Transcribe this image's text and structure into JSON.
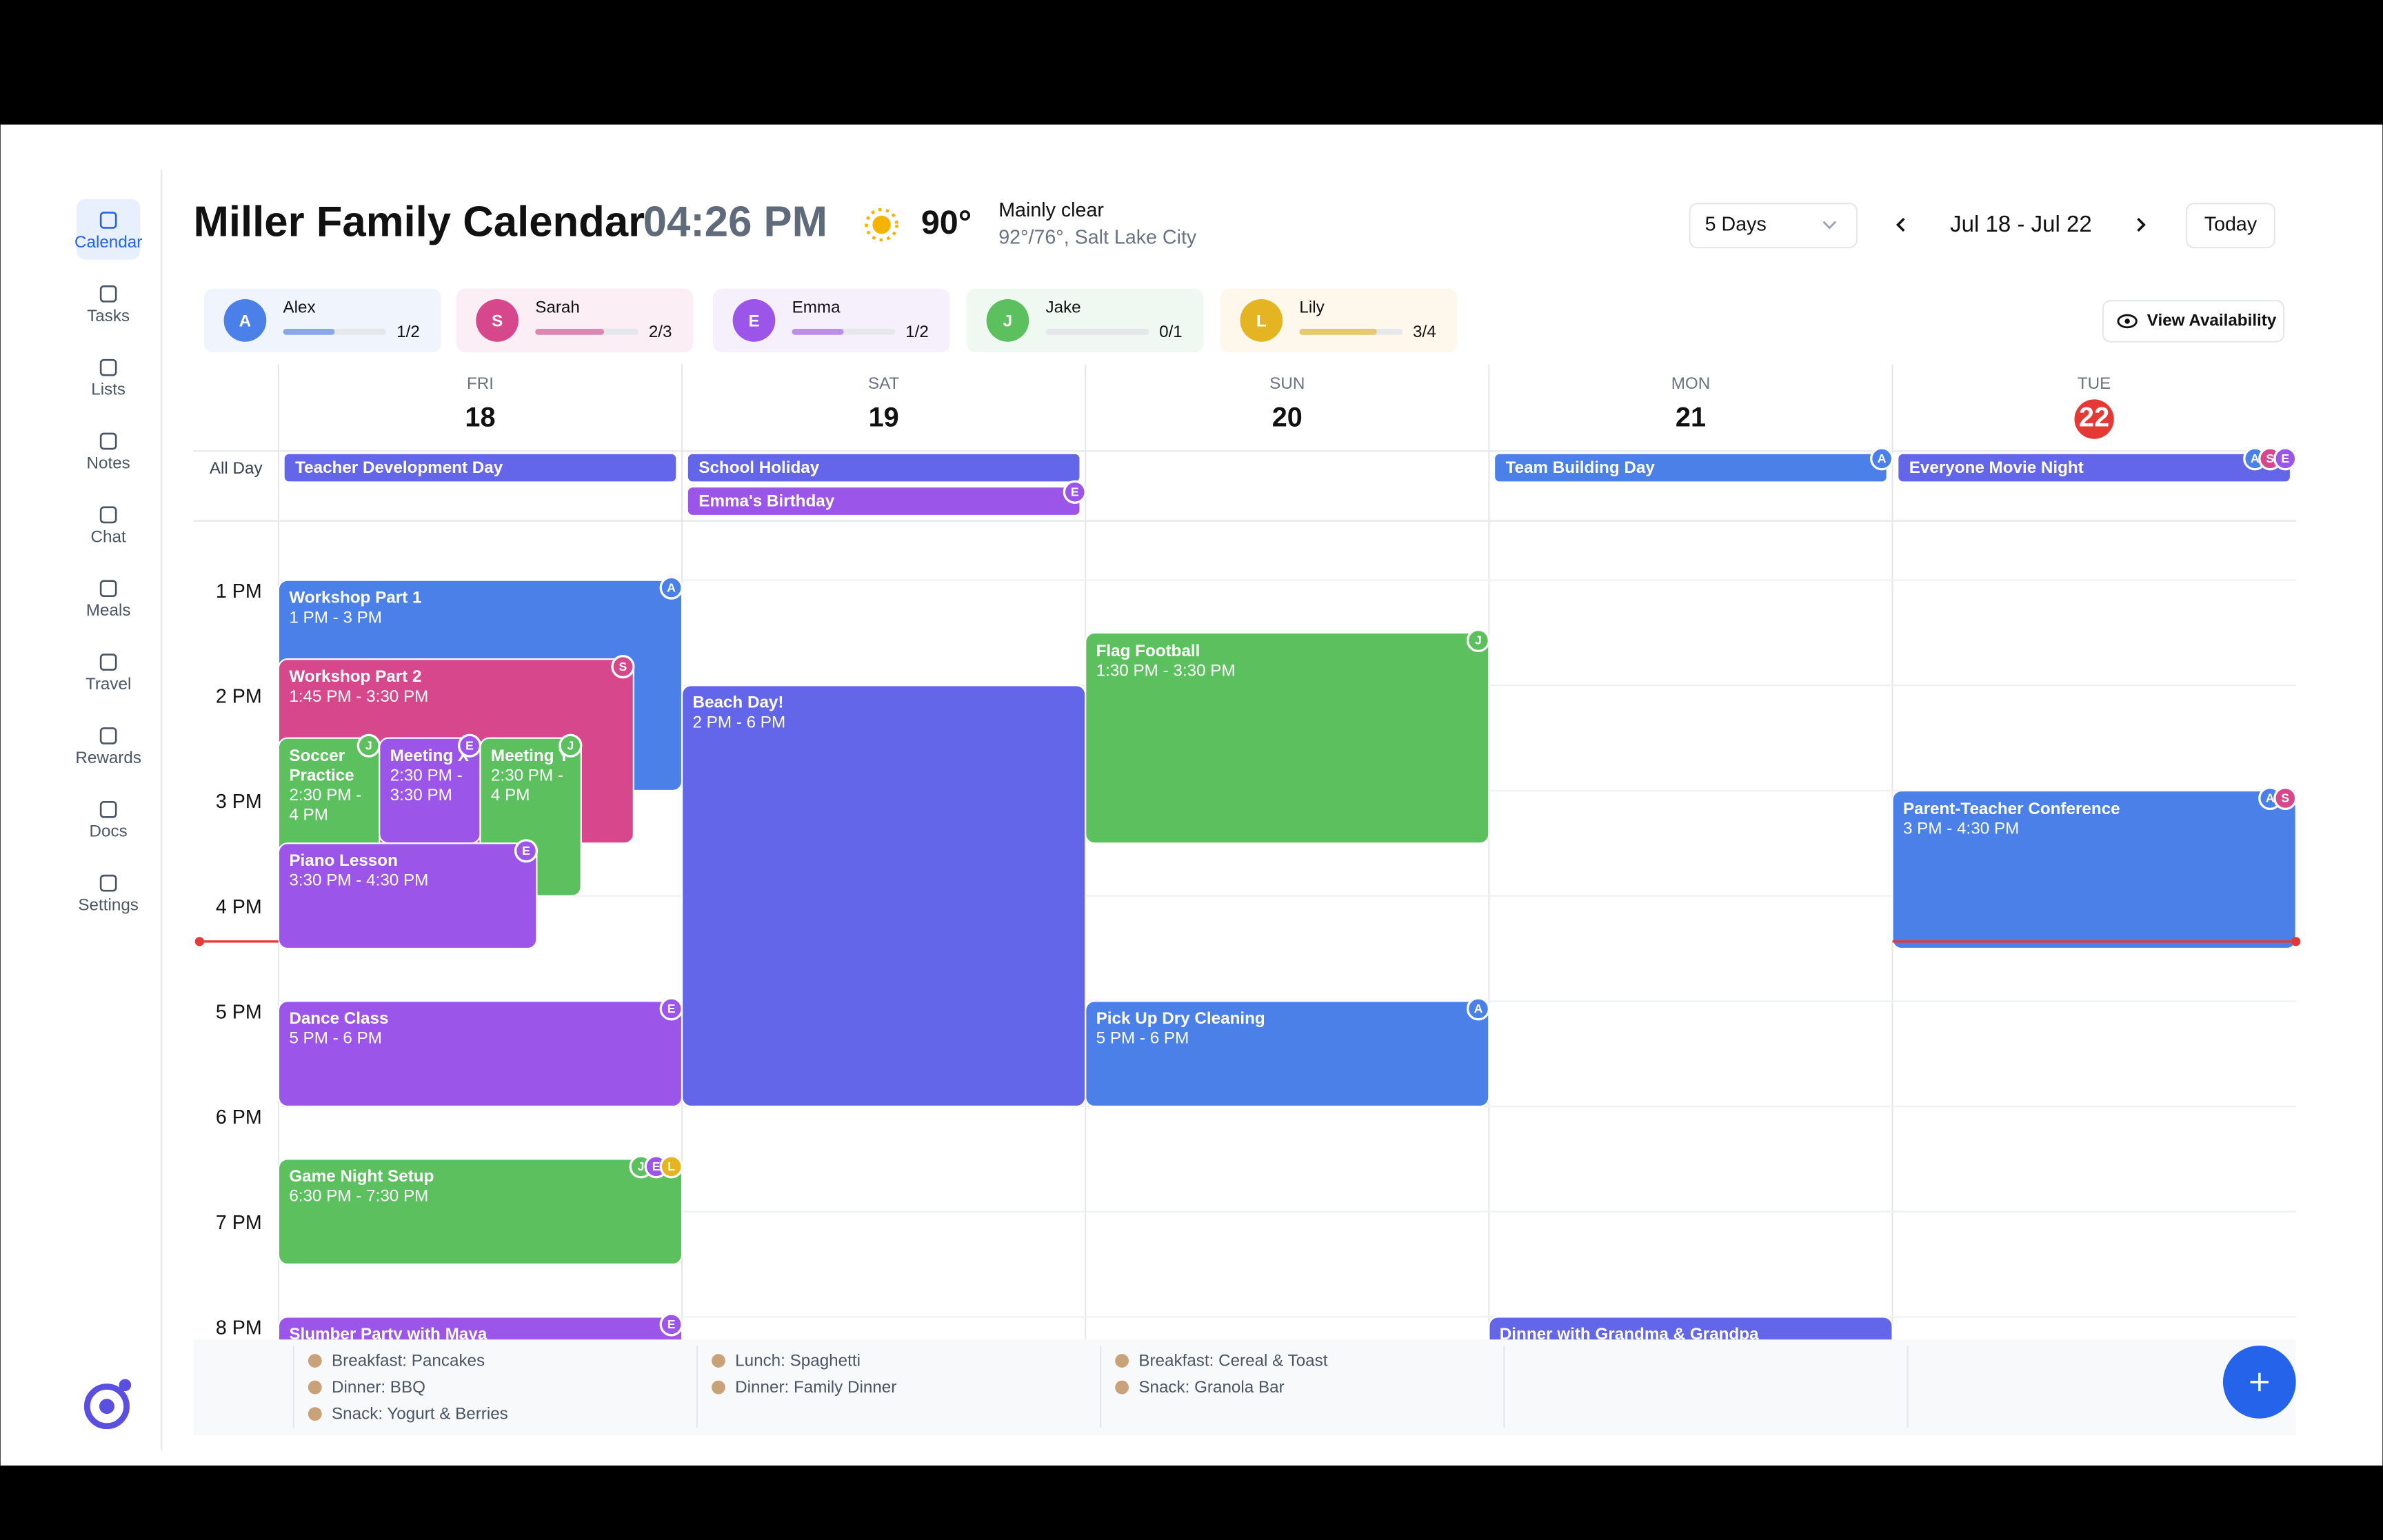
{
  "sidebar": {
    "items": [
      "Calendar",
      "Tasks",
      "Lists",
      "Notes",
      "Chat",
      "Meals",
      "Travel",
      "Rewards",
      "Docs",
      "Settings"
    ],
    "active": 0
  },
  "header": {
    "title": "Miller Family Calendar",
    "time": "04:26 PM",
    "temperature": "90°",
    "condition": "Mainly clear",
    "detail": "92°/76°, Salt Lake City",
    "view": "5 Days",
    "range": "Jul 18 - Jul 22",
    "today_button": "Today"
  },
  "members": [
    {
      "name": "Alex",
      "initial": "A",
      "color": "#4a80e8",
      "progress": 0.5,
      "progress_label": "1/2"
    },
    {
      "name": "Sarah",
      "initial": "S",
      "color": "#d6478b",
      "progress": 0.6667,
      "progress_label": "2/3"
    },
    {
      "name": "Emma",
      "initial": "E",
      "color": "#9b55e8",
      "progress": 0.5,
      "progress_label": "1/2"
    },
    {
      "name": "Jake",
      "initial": "J",
      "color": "#5cc05f",
      "progress": 0,
      "progress_label": "0/1"
    },
    {
      "name": "Lily",
      "initial": "L",
      "color": "#e5b423",
      "progress": 0.75,
      "progress_label": "3/4"
    }
  ],
  "availability_button": "View Availability",
  "days": [
    {
      "weekday": "FRI",
      "date": "18"
    },
    {
      "weekday": "SAT",
      "date": "19"
    },
    {
      "weekday": "SUN",
      "date": "20"
    },
    {
      "weekday": "MON",
      "date": "21"
    },
    {
      "weekday": "TUE",
      "date": "22",
      "today": true
    }
  ],
  "all_day_label": "All Day",
  "all_day_events": [
    {
      "title": "Teacher Development Day",
      "day": 0,
      "row": 0,
      "color": "#6366e8",
      "badges": []
    },
    {
      "title": "School Holiday",
      "day": 1,
      "row": 0,
      "color": "#6366e8",
      "badges": []
    },
    {
      "title": "Emma's Birthday",
      "day": 1,
      "row": 1,
      "color": "#9b55e8",
      "badges": [
        "E"
      ]
    },
    {
      "title": "Team Building Day",
      "day": 3,
      "row": 0,
      "color": "#4a80e8",
      "badges": [
        "A"
      ]
    },
    {
      "title": "Everyone Movie Night",
      "day": 4,
      "row": 0,
      "color": "#6366e8",
      "badges": [
        "A",
        "S",
        "E"
      ]
    }
  ],
  "hours": [
    {
      "value": 13,
      "label": "1 PM"
    },
    {
      "value": 14,
      "label": "2 PM"
    },
    {
      "value": 15,
      "label": "3 PM"
    },
    {
      "value": 16,
      "label": "4 PM"
    },
    {
      "value": 17,
      "label": "5 PM"
    },
    {
      "value": 18,
      "label": "6 PM"
    },
    {
      "value": 19,
      "label": "7 PM"
    },
    {
      "value": 20,
      "label": "8 PM"
    }
  ],
  "events": [
    {
      "title": "Workshop Part 1",
      "time": "1 PM - 3 PM",
      "day": 0,
      "start": 13,
      "end": 15,
      "color": "#4a80e8",
      "badges": [
        "A"
      ]
    },
    {
      "title": "Workshop Part 2",
      "time": "1:45 PM - 3:30 PM",
      "day": 0,
      "start": 13.75,
      "end": 15.5,
      "color": "#d6478b",
      "badges": [
        "S"
      ]
    },
    {
      "title": "Soccer Practice",
      "time": "2:30 PM - 4 PM",
      "day": 0,
      "start": 14.5,
      "end": 16,
      "color": "#5cc05f",
      "badges": [
        "J"
      ]
    },
    {
      "title": "Meeting X",
      "time": "2:30 PM - 3:30 PM",
      "day": 0,
      "start": 14.5,
      "end": 15.5,
      "color": "#9b55e8",
      "badges": [
        "E"
      ]
    },
    {
      "title": "Meeting Y",
      "time": "2:30 PM - 4 PM",
      "day": 0,
      "start": 14.5,
      "end": 16,
      "color": "#5cc05f",
      "badges": [
        "J"
      ]
    },
    {
      "title": "Piano Lesson",
      "time": "3:30 PM - 4:30 PM",
      "day": 0,
      "start": 15.5,
      "end": 16.5,
      "color": "#9b55e8",
      "badges": [
        "E"
      ]
    },
    {
      "title": "Dance Class",
      "time": "5 PM - 6 PM",
      "day": 0,
      "start": 17,
      "end": 18,
      "color": "#9b55e8",
      "badges": [
        "E"
      ]
    },
    {
      "title": "Game Night Setup",
      "time": "6:30 PM - 7:30 PM",
      "day": 0,
      "start": 18.5,
      "end": 19.5,
      "color": "#5cc05f",
      "badges": [
        "J",
        "E",
        "L"
      ]
    },
    {
      "title": "Slumber Party with Maya",
      "day": 0,
      "start": 20,
      "end": 21,
      "color": "#9b55e8",
      "badges": [
        "E"
      ]
    },
    {
      "title": "Beach Day!",
      "time": "2 PM - 6 PM",
      "day": 1,
      "start": 14,
      "end": 18,
      "color": "#6366e8",
      "badges": []
    },
    {
      "title": "Flag Football",
      "time": "1:30 PM - 3:30 PM",
      "day": 2,
      "start": 13.5,
      "end": 15.5,
      "color": "#5cc05f",
      "badges": [
        "J"
      ]
    },
    {
      "title": "Pick Up Dry Cleaning",
      "time": "5 PM - 6 PM",
      "day": 2,
      "start": 17,
      "end": 18,
      "color": "#4a80e8",
      "badges": [
        "A"
      ]
    },
    {
      "title": "Dinner with Grandma & Grandpa",
      "day": 3,
      "start": 20,
      "end": 21,
      "color": "#6366e8",
      "badges": []
    },
    {
      "title": "Parent-Teacher Conference",
      "time": "3 PM - 4:30 PM",
      "day": 4,
      "start": 15,
      "end": 16.5,
      "color": "#4a80e8",
      "badges": [
        "A",
        "S"
      ]
    }
  ],
  "meals": [
    [
      "Breakfast: Pancakes",
      "Dinner: BBQ",
      "Snack: Yogurt & Berries"
    ],
    [
      "Lunch: Spaghetti",
      "Dinner: Family Dinner"
    ],
    [
      "Breakfast: Cereal & Toast",
      "Snack: Granola Bar"
    ],
    [],
    []
  ]
}
